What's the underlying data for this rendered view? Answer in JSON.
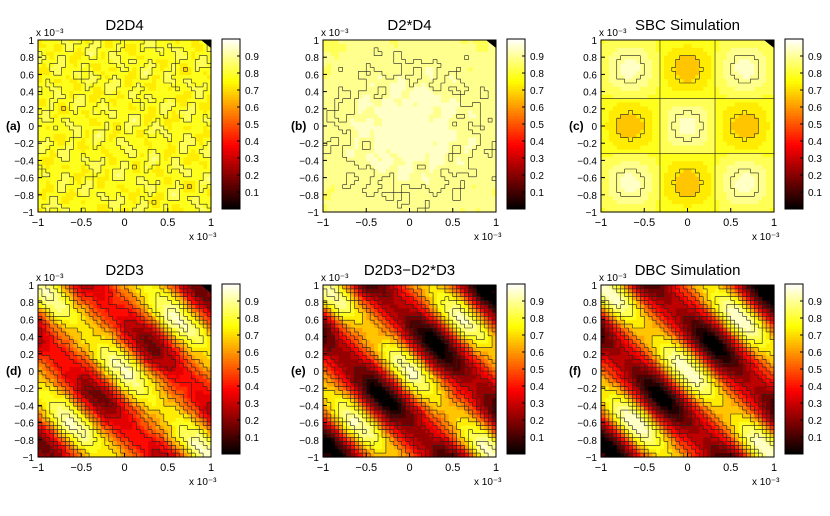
{
  "figure": {
    "panels": [
      {
        "title": "D2D4",
        "letter": "(a)",
        "mode": "uniform",
        "base": 0.78,
        "amp": 0.07,
        "rough": 1
      },
      {
        "title": "D2*D4",
        "letter": "(b)",
        "mode": "blob",
        "base": 0.9,
        "amp": 0.05,
        "rough": 0.3
      },
      {
        "title": "SBC Simulation",
        "letter": "(c)",
        "mode": "checker",
        "base": 0.8,
        "amp": 0.13,
        "rough": 0
      },
      {
        "title": "D2D3",
        "letter": "(d)",
        "mode": "stripes",
        "base": 0.55,
        "amp": 0.38,
        "rough": 0.35
      },
      {
        "title": "D2D3−D2*D3",
        "letter": "(e)",
        "mode": "stripes",
        "base": 0.45,
        "amp": 0.48,
        "rough": 0.3
      },
      {
        "title": "DBC Simulation",
        "letter": "(f)",
        "mode": "stripes",
        "base": 0.47,
        "amp": 0.5,
        "rough": 0
      }
    ],
    "x_ticks": [
      "−1",
      "−0.5",
      "0",
      "0.5",
      "1"
    ],
    "y_ticks": [
      "1",
      "0.8",
      "0.6",
      "0.4",
      "0.2",
      "0",
      "−0.2",
      "−0.4",
      "−0.6",
      "−0.8",
      "−1"
    ],
    "colorbar_ticks": [
      "0.9",
      "0.8",
      "0.7",
      "0.6",
      "0.5",
      "0.4",
      "0.3",
      "0.2",
      "0.1"
    ],
    "axis_exponent": "x 10⁻³"
  },
  "chart_data": {
    "type": "heatmap",
    "colormap": "hot",
    "xlim": [
      -1,
      1
    ],
    "ylim": [
      -1,
      1
    ],
    "colorbar_range": [
      0,
      1
    ],
    "contour_levels": [
      0.1,
      0.2,
      0.3,
      0.4,
      0.5,
      0.6,
      0.7,
      0.8,
      0.9
    ],
    "panels": [
      "D2D4",
      "D2*D4",
      "SBC Simulation",
      "D2D3",
      "D2D3−D2*D3",
      "DBC Simulation"
    ]
  }
}
